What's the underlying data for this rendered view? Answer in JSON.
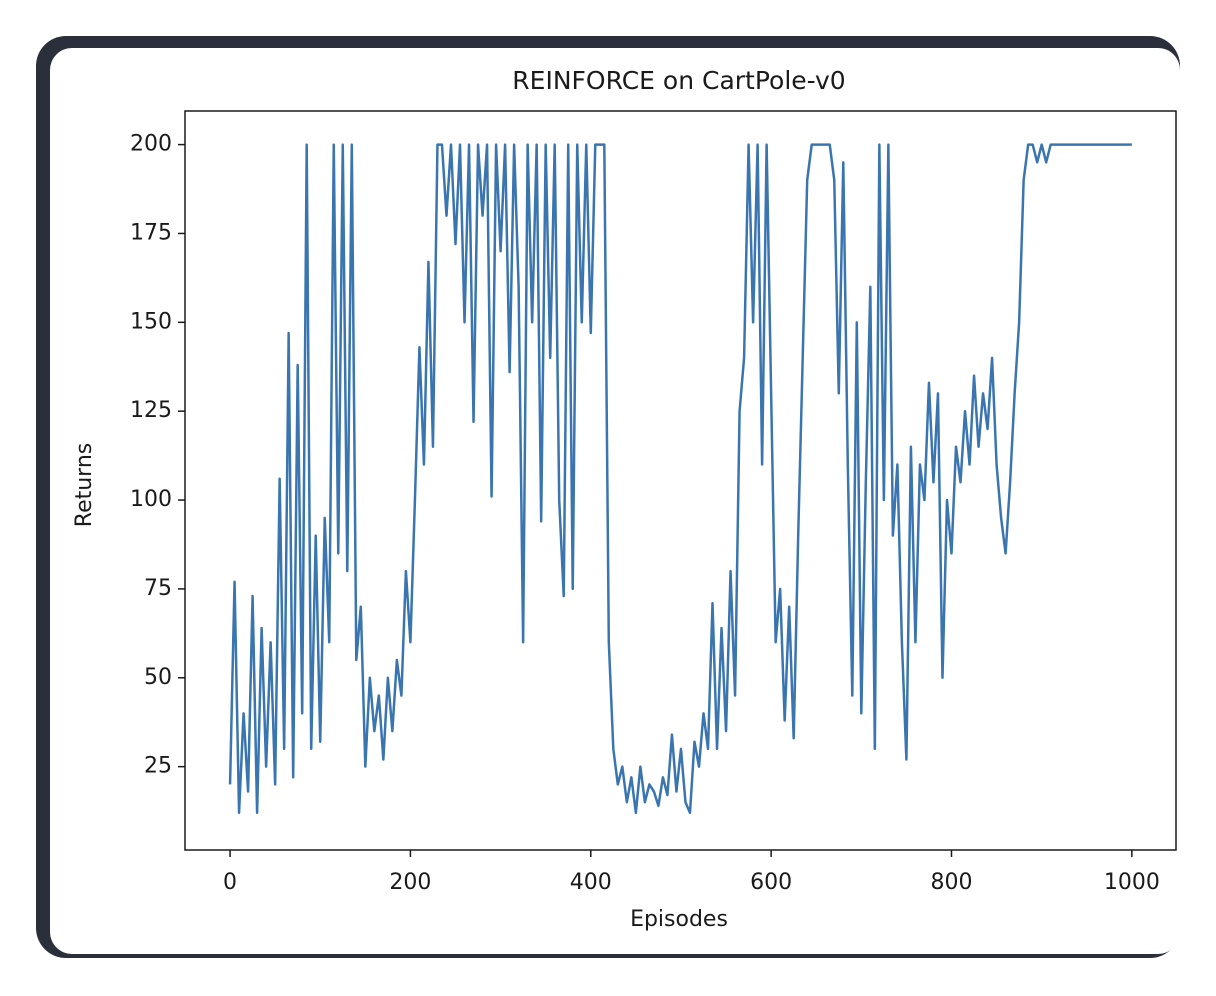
{
  "chart_data": {
    "type": "line",
    "title": "REINFORCE on CartPole-v0",
    "x_label": "Episodes",
    "y_label": "Returns",
    "xlim": [
      -49.95,
      1048.95
    ],
    "ylim": [
      1.55,
      209.45
    ],
    "xticks": [
      0,
      200,
      400,
      600,
      800,
      1000
    ],
    "yticks": [
      25,
      50,
      75,
      100,
      125,
      150,
      175,
      200
    ],
    "grid": false,
    "series": [
      {
        "name": "REINFORCE",
        "color": "#3a75b0",
        "x": [
          0,
          5,
          10,
          15,
          20,
          25,
          30,
          35,
          40,
          45,
          50,
          55,
          60,
          65,
          70,
          75,
          80,
          85,
          90,
          95,
          100,
          105,
          110,
          115,
          120,
          125,
          130,
          135,
          140,
          145,
          150,
          155,
          160,
          165,
          170,
          175,
          180,
          185,
          190,
          195,
          200,
          205,
          210,
          215,
          220,
          225,
          230,
          235,
          240,
          245,
          250,
          255,
          260,
          265,
          270,
          275,
          280,
          285,
          290,
          295,
          300,
          305,
          310,
          315,
          320,
          325,
          330,
          335,
          340,
          345,
          350,
          355,
          360,
          365,
          370,
          375,
          380,
          385,
          390,
          395,
          400,
          405,
          410,
          415,
          420,
          425,
          430,
          435,
          440,
          445,
          450,
          455,
          460,
          465,
          470,
          475,
          480,
          485,
          490,
          495,
          500,
          505,
          510,
          515,
          520,
          525,
          530,
          535,
          540,
          545,
          550,
          555,
          560,
          565,
          570,
          575,
          580,
          585,
          590,
          595,
          600,
          605,
          610,
          615,
          620,
          625,
          630,
          635,
          640,
          645,
          650,
          655,
          660,
          665,
          670,
          675,
          680,
          685,
          690,
          695,
          700,
          705,
          710,
          715,
          720,
          725,
          730,
          735,
          740,
          745,
          750,
          755,
          760,
          765,
          770,
          775,
          780,
          785,
          790,
          795,
          800,
          805,
          810,
          815,
          820,
          825,
          830,
          835,
          840,
          845,
          850,
          855,
          860,
          865,
          870,
          875,
          880,
          885,
          890,
          895,
          900,
          905,
          910,
          915,
          920,
          925,
          930,
          935,
          940,
          945,
          950,
          955,
          960,
          965,
          970,
          975,
          980,
          985,
          990,
          995,
          1000
        ],
        "values": [
          20,
          77,
          12,
          40,
          18,
          73,
          12,
          64,
          25,
          60,
          20,
          106,
          30,
          147,
          22,
          138,
          40,
          200,
          30,
          90,
          32,
          95,
          60,
          200,
          85,
          200,
          80,
          200,
          55,
          70,
          25,
          50,
          35,
          45,
          27,
          50,
          35,
          55,
          45,
          80,
          60,
          100,
          143,
          110,
          167,
          115,
          200,
          200,
          180,
          200,
          172,
          200,
          150,
          200,
          122,
          200,
          180,
          200,
          101,
          200,
          170,
          200,
          136,
          200,
          160,
          60,
          200,
          150,
          200,
          94,
          200,
          140,
          200,
          100,
          73,
          200,
          75,
          200,
          150,
          200,
          147,
          200,
          200,
          200,
          60,
          30,
          20,
          25,
          15,
          22,
          12,
          25,
          15,
          20,
          18,
          14,
          22,
          17,
          34,
          18,
          30,
          15,
          12,
          32,
          25,
          40,
          30,
          71,
          30,
          64,
          35,
          80,
          45,
          125,
          140,
          200,
          150,
          200,
          110,
          200,
          130,
          60,
          75,
          38,
          70,
          33,
          90,
          140,
          190,
          200,
          200,
          200,
          200,
          200,
          190,
          130,
          195,
          110,
          45,
          150,
          40,
          105,
          160,
          30,
          200,
          100,
          200,
          90,
          110,
          60,
          27,
          115,
          60,
          110,
          100,
          133,
          105,
          130,
          50,
          100,
          85,
          115,
          105,
          125,
          110,
          135,
          115,
          130,
          120,
          140,
          110,
          95,
          85,
          105,
          130,
          150,
          190,
          200,
          200,
          195,
          200,
          195,
          200,
          200,
          200,
          200,
          200,
          200,
          200,
          200,
          200,
          200,
          200,
          200,
          200,
          200,
          200,
          200,
          200,
          200,
          200
        ]
      }
    ]
  }
}
